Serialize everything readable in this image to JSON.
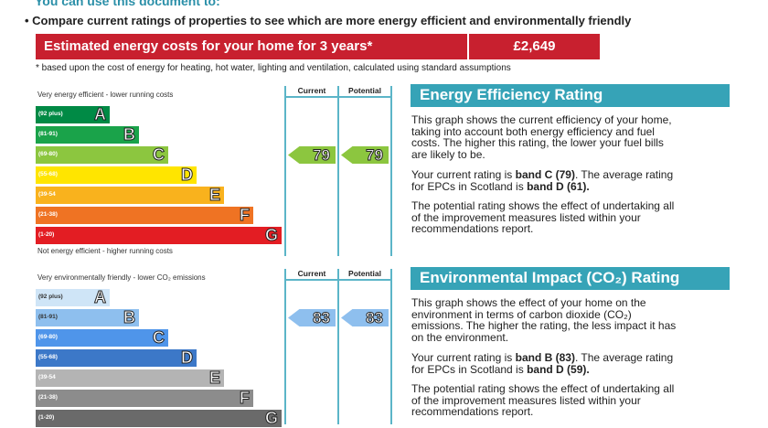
{
  "intro": "You can use this document to:",
  "bullet": "•  Compare current ratings of properties to see which are more energy efficient and environmentally friendly",
  "cost": {
    "label": "Estimated energy costs for your home for 3 years*",
    "value": "£2,649"
  },
  "footnote": "* based upon the cost of energy for heating, hot water, lighting and ventilation, calculated using standard assumptions",
  "energy": {
    "top_label": "Very energy efficient - lower running costs",
    "bottom_label": "Not energy efficient - higher running costs",
    "col_current": "Current",
    "col_potential": "Potential",
    "current": "79",
    "potential": "79",
    "arrow_color": "#8cc63f",
    "bands": [
      {
        "range": "(92 plus)",
        "letter": "A",
        "color": "#008a45"
      },
      {
        "range": "(81-91)",
        "letter": "B",
        "color": "#1aa34a"
      },
      {
        "range": "(69-80)",
        "letter": "C",
        "color": "#8cc63f"
      },
      {
        "range": "(55-68)",
        "letter": "D",
        "color": "#ffe500"
      },
      {
        "range": "(39-54",
        "letter": "E",
        "color": "#f9b21d"
      },
      {
        "range": "(21-38)",
        "letter": "F",
        "color": "#ef7323"
      },
      {
        "range": "(1-20)",
        "letter": "G",
        "color": "#e31d23"
      }
    ],
    "heading": "Energy Efficiency Rating",
    "p1": [
      "This graph shows the current efficiency of your home,",
      "taking into account both energy efficiency and fuel",
      "costs. The higher this rating, the lower your fuel bills",
      "are likely to be."
    ],
    "p2a": "Your current rating is ",
    "p2b": "band C (79)",
    "p2c": ". The average rating",
    "p2d": "for EPCs in Scotland is ",
    "p2e": "band D (61).",
    "p3": [
      "The potential rating shows the effect of undertaking all",
      "of the improvement measures listed within your",
      "recommendations report."
    ]
  },
  "env": {
    "top_label": "Very environmentally friendly - lower CO₂ emissions",
    "col_current": "Current",
    "col_potential": "Potential",
    "current": "83",
    "potential": "83",
    "arrow_color": "#8ebfee",
    "bands": [
      {
        "range": "(92 plus)",
        "letter": "A",
        "color": "#cfe5f7"
      },
      {
        "range": "(81-91)",
        "letter": "B",
        "color": "#8ebfee"
      },
      {
        "range": "(69-80)",
        "letter": "C",
        "color": "#4f95ea"
      },
      {
        "range": "(55-68)",
        "letter": "D",
        "color": "#3c78c8"
      },
      {
        "range": "(39-54",
        "letter": "E",
        "color": "#b4b4b4"
      },
      {
        "range": "(21-38)",
        "letter": "F",
        "color": "#8c8c8c"
      },
      {
        "range": "(1-20)",
        "letter": "G",
        "color": "#6a6a6a"
      }
    ],
    "heading": "Environmental Impact (CO₂) Rating",
    "p1": [
      "This graph shows the effect of your home on the",
      "environment in terms of carbon dioxide (CO₂)",
      "emissions. The higher the rating, the less impact it has",
      "on the environment."
    ],
    "p2a": "Your current rating is ",
    "p2b": "band B (83)",
    "p2c": ". The average rating",
    "p2d": "for EPCs in Scotland is ",
    "p2e": "band D (59).",
    "p3": [
      "The potential rating shows the effect of undertaking all",
      "of the improvement measures listed within your",
      "recommendations report."
    ]
  }
}
